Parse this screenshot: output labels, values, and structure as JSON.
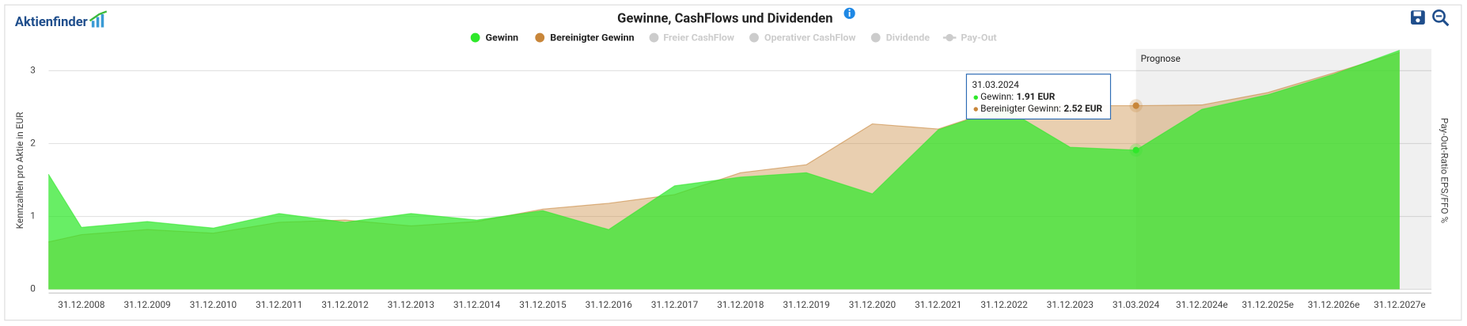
{
  "logo": "Aktienfinder",
  "chart_data": {
    "type": "area",
    "title": "Gewinne, CashFlows und Dividenden",
    "ylabel": "Kennzahlen pro Aktie in EUR",
    "y2label": "Pay-Out-Ratio EPS/FFO %",
    "categories": [
      null,
      "31.12.2008",
      "31.12.2009",
      "31.12.2010",
      "31.12.2011",
      "31.12.2012",
      "31.12.2013",
      "31.12.2014",
      "31.12.2015",
      "31.12.2016",
      "31.12.2017",
      "31.12.2018",
      "31.12.2019",
      "31.12.2020",
      "31.12.2021",
      "31.12.2022",
      "31.12.2023",
      "31.03.2024",
      "31.12.2024e",
      "31.12.2025e",
      "31.12.2026e",
      "31.12.2027e"
    ],
    "series": [
      {
        "name": "Bereinigter Gewinn",
        "color": "#c8863a",
        "values": [
          0.65,
          0.75,
          0.82,
          0.77,
          0.92,
          0.95,
          0.87,
          0.93,
          1.1,
          1.18,
          1.3,
          1.6,
          1.71,
          2.27,
          2.2,
          2.5,
          2.52,
          2.52,
          2.53,
          2.7,
          2.97,
          3.25
        ]
      },
      {
        "name": "Gewinn",
        "color": "#2ee82a",
        "values": [
          1.58,
          0.85,
          0.93,
          0.84,
          1.04,
          0.92,
          1.04,
          0.95,
          1.08,
          0.82,
          1.42,
          1.54,
          1.6,
          1.31,
          2.19,
          2.49,
          1.95,
          1.91,
          2.47,
          2.67,
          2.95,
          3.28
        ]
      }
    ],
    "inactive_legend": [
      "Freier CashFlow",
      "Operativer CashFlow",
      "Dividende",
      "Pay-Out"
    ],
    "ylim": [
      0,
      3.3
    ],
    "yticks": [
      0,
      1,
      2,
      3
    ],
    "grid": true,
    "annotation": "Prognose",
    "tooltip": {
      "rows": [
        {
          "label": "Gewinn:",
          "value": "1.91 EUR"
        },
        {
          "label": "Bereinigter Gewinn:",
          "value": "2.52 EUR"
        }
      ]
    }
  }
}
